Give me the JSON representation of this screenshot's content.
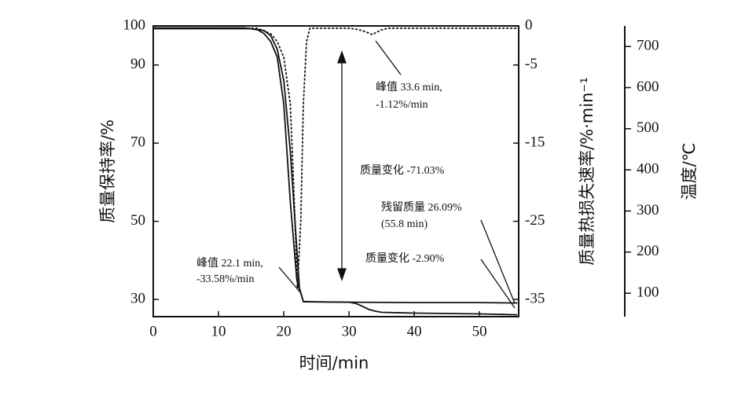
{
  "chart_data": {
    "type": "line",
    "x_label": "时间/min",
    "y_label": "质量保持率/%",
    "y2_label": "质量热损失速率/%·min⁻¹",
    "y3_label": "温度/℃",
    "xlim": [
      0,
      56
    ],
    "xticks": [
      0,
      10,
      20,
      30,
      40,
      50
    ],
    "ylim": [
      25.6,
      100
    ],
    "yticks": [
      30,
      50,
      70,
      90,
      100
    ],
    "y2lim": [
      -37.2,
      0
    ],
    "y2ticks": [
      -35,
      -25,
      -15,
      -5,
      0
    ],
    "y3lim": [
      43,
      750
    ],
    "y3ticks": [
      100,
      200,
      300,
      400,
      500,
      600,
      700
    ],
    "series": [
      {
        "color": "#111111",
        "dash": false,
        "x": [
          0,
          14,
          16,
          17,
          18,
          19,
          20,
          21,
          22,
          23,
          25,
          30,
          31,
          32,
          33,
          34,
          35,
          40,
          50,
          55.8
        ],
        "values": [
          99.5,
          99.5,
          99,
          98,
          96,
          92,
          80,
          55,
          35,
          29.5,
          29.4,
          29.3,
          29,
          28.3,
          27.5,
          27,
          26.7,
          26.5,
          26.3,
          26.09
        ]
      },
      {
        "color": "#111111",
        "dash": false,
        "x": [
          0,
          15,
          17,
          18,
          19,
          20,
          21,
          21.8,
          22.4,
          23,
          30,
          40,
          50,
          55.8
        ],
        "values": [
          99.3,
          99.3,
          98.8,
          97.5,
          94,
          86,
          68,
          48,
          33,
          29.4,
          29.3,
          29.2,
          29.2,
          29.1
        ]
      },
      {
        "color": "#111111",
        "dash": true,
        "axis": "y2",
        "x": [
          0,
          16,
          18,
          19,
          20,
          21,
          21.5,
          22.1,
          22.6,
          23,
          23.5,
          24,
          30,
          31,
          32,
          33,
          33.6,
          34,
          35,
          36,
          40,
          50,
          56
        ],
        "values": [
          -0.3,
          -0.3,
          -1,
          -2,
          -4,
          -10,
          -20,
          -33.58,
          -25,
          -10,
          -2,
          -0.3,
          -0.3,
          -0.4,
          -0.6,
          -0.9,
          -1.12,
          -0.9,
          -0.5,
          -0.3,
          -0.3,
          -0.3,
          -0.3
        ]
      }
    ],
    "annotations": [
      "峰值 33.6 min,",
      "-1.12%/min",
      "质量变化 -71.03%",
      "残留质量 26.09%",
      "(55.8 min)",
      "质量变化 -2.90%",
      "峰值 22.1 min,",
      "-33.58%/min"
    ]
  }
}
